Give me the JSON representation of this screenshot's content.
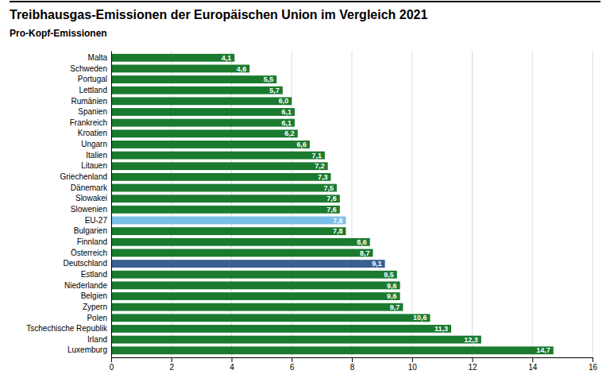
{
  "chart_data": {
    "type": "bar",
    "orientation": "horizontal",
    "title": "Treibhausgas-Emissionen der Europäischen Union im Vergleich 2021",
    "subtitle": "Pro-Kopf-Emissionen",
    "categories": [
      "Malta",
      "Schweden",
      "Portugal",
      "Lettland",
      "Rumänien",
      "Spanien",
      "Frankreich",
      "Kroatien",
      "Ungarn",
      "Italien",
      "Litauen",
      "Griechenland",
      "Dänemark",
      "Slowakei",
      "Slowenien",
      "EU-27",
      "Bulgarien",
      "Finnland",
      "Österreich",
      "Deutschland",
      "Estland",
      "Niederlande",
      "Belgien",
      "Zypern",
      "Polen",
      "Tschechische Republik",
      "Irland",
      "Luxemburg"
    ],
    "values": [
      4.1,
      4.6,
      5.5,
      5.7,
      6.0,
      6.1,
      6.1,
      6.2,
      6.6,
      7.1,
      7.2,
      7.3,
      7.5,
      7.6,
      7.6,
      7.8,
      7.8,
      8.6,
      8.7,
      9.1,
      9.5,
      9.6,
      9.6,
      9.7,
      10.6,
      11.3,
      12.3,
      14.7
    ],
    "value_labels": [
      "4,1",
      "4,6",
      "5,5",
      "5,7",
      "6,0",
      "6,1",
      "6,1",
      "6,2",
      "6,6",
      "7,1",
      "7,2",
      "7,3",
      "7,5",
      "7,6",
      "7,6",
      "7,8",
      "7,8",
      "8,6",
      "8,7",
      "9,1",
      "9,5",
      "9,6",
      "9,6",
      "9,7",
      "10,6",
      "11,3",
      "12,3",
      "14,7"
    ],
    "data_labels": true,
    "colors": [
      "#1a7a2e",
      "#1a7a2e",
      "#1a7a2e",
      "#1a7a2e",
      "#1a7a2e",
      "#1a7a2e",
      "#1a7a2e",
      "#1a7a2e",
      "#1a7a2e",
      "#1a7a2e",
      "#1a7a2e",
      "#1a7a2e",
      "#1a7a2e",
      "#1a7a2e",
      "#1a7a2e",
      "#7bbfe8",
      "#1a7a2e",
      "#1a7a2e",
      "#1a7a2e",
      "#3a6090",
      "#1a7a2e",
      "#1a7a2e",
      "#1a7a2e",
      "#1a7a2e",
      "#1a7a2e",
      "#1a7a2e",
      "#1a7a2e",
      "#1a7a2e"
    ],
    "xlim": [
      0,
      16
    ],
    "xticks": [
      0,
      2,
      4,
      6,
      8,
      10,
      12,
      14,
      16
    ],
    "grid": true
  }
}
